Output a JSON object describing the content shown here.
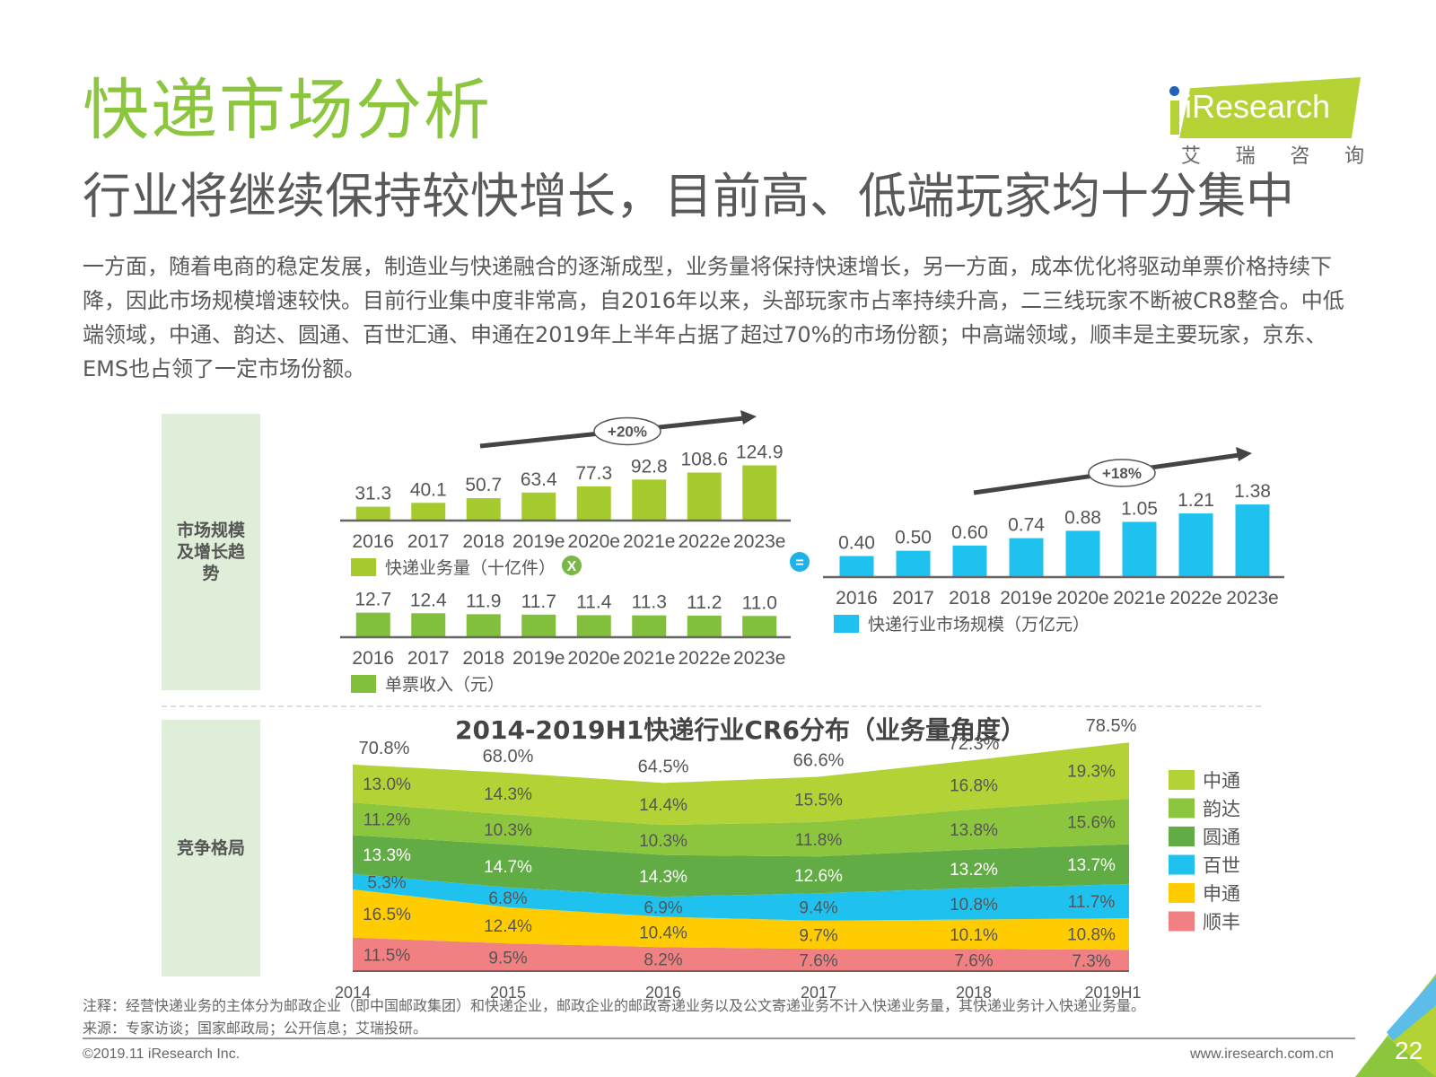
{
  "header": {
    "title": "快递市场分析",
    "subtitle": "行业将继续保持较快增长，目前高、低端玩家均十分集中",
    "logo_text": "iResearch",
    "logo_cn": [
      "艾",
      "瑞",
      "咨",
      "询"
    ]
  },
  "body_text": "一方面，随着电商的稳定发展，制造业与快递融合的逐渐成型，业务量将保持快速增长，另一方面，成本优化将驱动单票价格持续下降，因此市场规模增速较快。目前行业集中度非常高，自2016年以来，头部玩家市占率持续升高，二三线玩家不断被CR8整合。中低端领域，中通、韵达、圆通、百世汇通、申通在2019年上半年占据了超过70%的市场份额；中高端领域，顺丰是主要玩家，京东、EMS也占领了一定市场份额。",
  "side_labels": {
    "market": "市场规模及增长趋势",
    "competition": "竞争格局"
  },
  "operators": {
    "multiply": "X",
    "equals": "="
  },
  "colors": {
    "volume": "#a5cb2f",
    "price": "#82bf3c",
    "market": "#1fc2ee",
    "zto": "#b2d235",
    "yunda": "#8cc63f",
    "yto": "#62ac45",
    "best": "#1fc2ee",
    "sto": "#ffcc00",
    "sf": "#f08081"
  },
  "chart_data": [
    {
      "type": "bar",
      "name": "volume",
      "categories": [
        "2016",
        "2017",
        "2018",
        "2019e",
        "2020e",
        "2021e",
        "2022e",
        "2023e"
      ],
      "values": [
        31.3,
        40.1,
        50.7,
        63.4,
        77.3,
        92.8,
        108.6,
        124.9
      ],
      "labels": [
        "31.3",
        "40.1",
        "50.7",
        "63.4",
        "77.3",
        "92.8",
        "108.6",
        "124.9"
      ],
      "legend": "快递业务量（十亿件）",
      "growth_annotation": "+20%",
      "ylim": [
        0,
        130
      ]
    },
    {
      "type": "bar",
      "name": "unit_price",
      "categories": [
        "2016",
        "2017",
        "2018",
        "2019e",
        "2020e",
        "2021e",
        "2022e",
        "2023e"
      ],
      "values": [
        12.7,
        12.4,
        11.9,
        11.7,
        11.4,
        11.3,
        11.2,
        11.0
      ],
      "labels": [
        "12.7",
        "12.4",
        "11.9",
        "11.7",
        "11.4",
        "11.3",
        "11.2",
        "11.0"
      ],
      "legend": "单票收入（元）",
      "ylim": [
        0,
        13
      ]
    },
    {
      "type": "bar",
      "name": "market_size",
      "categories": [
        "2016",
        "2017",
        "2018",
        "2019e",
        "2020e",
        "2021e",
        "2022e",
        "2023e"
      ],
      "values": [
        0.4,
        0.5,
        0.6,
        0.74,
        0.88,
        1.05,
        1.21,
        1.38
      ],
      "labels": [
        "0.40",
        "0.50",
        "0.60",
        "0.74",
        "0.88",
        "1.05",
        "1.21",
        "1.38"
      ],
      "legend": "快递行业市场规模（万亿元）",
      "growth_annotation": "+18%",
      "ylim": [
        0,
        1.45
      ]
    },
    {
      "type": "area",
      "name": "cr6",
      "title": "2014-2019H1快递行业CR6分布（业务量角度）",
      "x": [
        "2014",
        "2015",
        "2016",
        "2017",
        "2018",
        "2019H1"
      ],
      "totals": [
        "70.8%",
        "68.0%",
        "64.5%",
        "66.6%",
        "72.3%",
        "78.5%"
      ],
      "total_values": [
        70.8,
        68.0,
        64.5,
        66.6,
        72.3,
        78.5
      ],
      "series_bottom_to_top_order": [
        "顺丰",
        "申通",
        "百世",
        "圆通",
        "韵达",
        "中通"
      ],
      "series": [
        {
          "name": "中通",
          "key": "zto",
          "values": [
            13.0,
            14.3,
            14.4,
            15.5,
            16.8,
            19.3
          ]
        },
        {
          "name": "韵达",
          "key": "yunda",
          "values": [
            11.2,
            10.3,
            10.3,
            11.8,
            13.8,
            15.6
          ]
        },
        {
          "name": "圆通",
          "key": "yto",
          "values": [
            13.3,
            14.7,
            14.3,
            12.6,
            13.2,
            13.7
          ]
        },
        {
          "name": "百世",
          "key": "best",
          "values": [
            5.3,
            6.8,
            6.9,
            9.4,
            10.8,
            11.7
          ]
        },
        {
          "name": "申通",
          "key": "sto",
          "values": [
            16.5,
            12.4,
            10.4,
            9.7,
            10.1,
            10.8
          ]
        },
        {
          "name": "顺丰",
          "key": "sf",
          "values": [
            11.5,
            9.5,
            8.2,
            7.6,
            7.6,
            7.3
          ]
        }
      ],
      "legend_placement": "right",
      "ylim": [
        0,
        80
      ]
    }
  ],
  "footer": {
    "note": "注释：经营快递业务的主体分为邮政企业（即中国邮政集团）和快递企业，邮政企业的邮政寄递业务以及公文寄递业务不计入快递业务量，其快递业务计入快递业务量。",
    "source": "来源：专家访谈；国家邮政局；公开信息；艾瑞投研。",
    "copyright": "©2019.11 iResearch Inc.",
    "website": "www.iresearch.com.cn",
    "page_number": "22"
  }
}
